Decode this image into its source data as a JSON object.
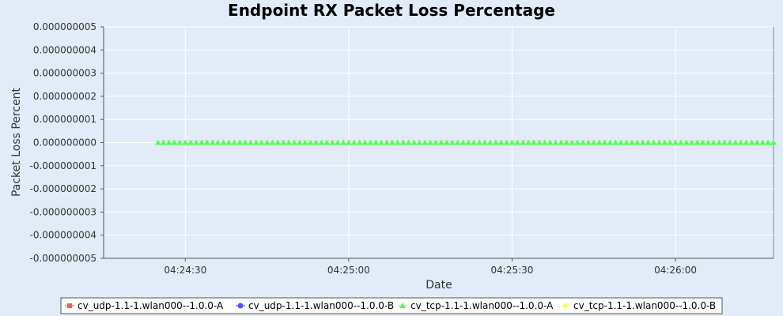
{
  "chart_data": {
    "type": "scatter",
    "title": "Endpoint RX Packet Loss Percentage",
    "xlabel": "Date",
    "ylabel": "Packet Loss Percent",
    "xlim": [
      "04:24:15",
      "04:26:18"
    ],
    "ylim": [
      -5e-09,
      5e-09
    ],
    "x_ticks": [
      "04:24:30",
      "04:25:00",
      "04:25:30",
      "04:26:00"
    ],
    "y_ticks": [
      "0.000000005",
      "0.000000004",
      "0.000000003",
      "0.000000002",
      "0.000000001",
      "0.000000000",
      "-0.000000001",
      "-0.000000002",
      "-0.000000003",
      "-0.000000004",
      "-0.000000005"
    ],
    "y_tick_values": [
      5e-09,
      4e-09,
      3e-09,
      2e-09,
      1e-09,
      0,
      -1e-09,
      -2e-09,
      -3e-09,
      -4e-09,
      -5e-09
    ],
    "grid": true,
    "legend_position": "bottom",
    "series": [
      {
        "name": "cv_udp-1.1-1.wlan000--1.0.0-A",
        "color": "#ff5555",
        "marker": "square",
        "x": [],
        "y": []
      },
      {
        "name": "cv_udp-1.1-1.wlan000--1.0.0-B",
        "color": "#5555ff",
        "marker": "circle",
        "x": [],
        "y": []
      },
      {
        "name": "cv_tcp-1.1-1.wlan000--1.0.0-A",
        "color": "#55ff55",
        "marker": "triangle",
        "x_start": "04:24:25",
        "x_end": "04:26:18",
        "y_constant": 0
      },
      {
        "name": "cv_tcp-1.1-1.wlan000--1.0.0-B",
        "color": "#ffff55",
        "marker": "diamond",
        "x": [],
        "y": []
      }
    ]
  }
}
